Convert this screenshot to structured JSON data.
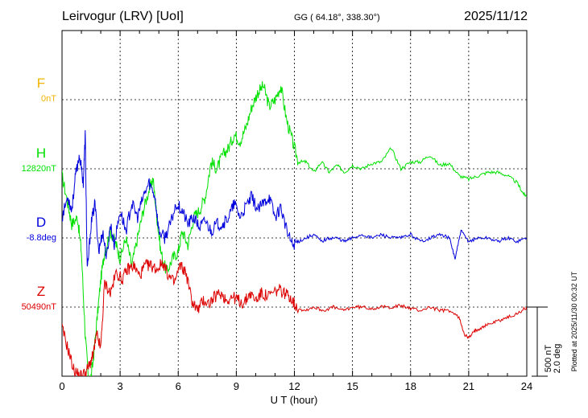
{
  "header": {
    "station": "Leirvogur (LRV)  [UoI]",
    "coords": "GG ( 64.18°, 338.30°)",
    "date": "2025/11/12"
  },
  "footer": {
    "plotted": "Plotted at 2025/11/30 00:32 UT"
  },
  "scale": {
    "nt": "500 nT",
    "deg": "2.0 deg"
  },
  "colors": {
    "F": "#f0b400",
    "H": "#00e000",
    "D": "#0000dd",
    "Z": "#dd0000"
  },
  "chart_data": {
    "type": "line",
    "xlabel": "U T (hour)",
    "xlim": [
      0,
      24
    ],
    "xticks": [
      "0",
      "3",
      "6",
      "9",
      "12",
      "15",
      "18",
      "21",
      "24"
    ],
    "series": [
      {
        "key": "F",
        "name": "F",
        "baseline": "0nT",
        "points": []
      },
      {
        "key": "H",
        "name": "H",
        "baseline": "12820nT",
        "points": [
          [
            0,
            -0.1
          ],
          [
            0.3,
            -0.5
          ],
          [
            0.5,
            -0.8
          ],
          [
            0.8,
            -0.7
          ],
          [
            1.0,
            -1.2
          ],
          [
            1.2,
            -2.4
          ],
          [
            1.4,
            -3.2
          ],
          [
            1.6,
            -2.8
          ],
          [
            1.8,
            -2.2
          ],
          [
            2.0,
            -1.6
          ],
          [
            2.2,
            -1.2
          ],
          [
            2.5,
            -0.9
          ],
          [
            2.8,
            -1.1
          ],
          [
            3.0,
            -1.3
          ],
          [
            3.3,
            -1.0
          ],
          [
            3.6,
            -1.4
          ],
          [
            3.9,
            -1.0
          ],
          [
            4.2,
            -0.6
          ],
          [
            4.5,
            -0.3
          ],
          [
            4.7,
            -0.15
          ],
          [
            4.9,
            -0.7
          ],
          [
            5.1,
            -1.2
          ],
          [
            5.4,
            -1.5
          ],
          [
            5.7,
            -1.3
          ],
          [
            6.0,
            -1.2
          ],
          [
            6.2,
            -0.9
          ],
          [
            6.5,
            -1.1
          ],
          [
            6.8,
            -0.7
          ],
          [
            7.1,
            -0.6
          ],
          [
            7.4,
            -0.4
          ],
          [
            7.7,
            0.1
          ],
          [
            8.0,
            0.0
          ],
          [
            8.3,
            0.2
          ],
          [
            8.6,
            0.3
          ],
          [
            8.9,
            0.5
          ],
          [
            9.2,
            0.4
          ],
          [
            9.5,
            0.6
          ],
          [
            9.8,
            0.9
          ],
          [
            10.1,
            1.1
          ],
          [
            10.4,
            1.2
          ],
          [
            10.7,
            0.9
          ],
          [
            11.0,
            1.0
          ],
          [
            11.3,
            1.2
          ],
          [
            11.6,
            0.7
          ],
          [
            11.9,
            0.4
          ],
          [
            12.2,
            0.1
          ],
          [
            12.6,
            0.1
          ],
          [
            13.0,
            -0.05
          ],
          [
            13.4,
            0.1
          ],
          [
            13.8,
            -0.05
          ],
          [
            14.2,
            0.05
          ],
          [
            14.6,
            -0.05
          ],
          [
            15.0,
            0.05
          ],
          [
            15.5,
            0.0
          ],
          [
            16.0,
            0.08
          ],
          [
            16.5,
            0.1
          ],
          [
            17.0,
            0.3
          ],
          [
            17.5,
            0.0
          ],
          [
            18.0,
            0.1
          ],
          [
            18.5,
            0.1
          ],
          [
            19.0,
            0.2
          ],
          [
            19.5,
            0.05
          ],
          [
            20.0,
            0.08
          ],
          [
            20.5,
            -0.1
          ],
          [
            21.0,
            -0.15
          ],
          [
            21.5,
            -0.1
          ],
          [
            22.0,
            -0.05
          ],
          [
            22.5,
            -0.05
          ],
          [
            23.0,
            -0.1
          ],
          [
            23.5,
            -0.2
          ],
          [
            23.8,
            -0.35
          ],
          [
            24.0,
            -0.4
          ]
        ]
      },
      {
        "key": "D",
        "name": "D",
        "baseline": "-8.8deg",
        "points": [
          [
            0,
            0.3
          ],
          [
            0.3,
            0.6
          ],
          [
            0.5,
            0.4
          ],
          [
            0.7,
            0.9
          ],
          [
            0.9,
            1.2
          ],
          [
            1.1,
            0.8
          ],
          [
            1.2,
            1.5
          ],
          [
            1.3,
            -0.5
          ],
          [
            1.5,
            0.2
          ],
          [
            1.7,
            0.5
          ],
          [
            1.9,
            -0.2
          ],
          [
            2.1,
            0.1
          ],
          [
            2.3,
            -0.3
          ],
          [
            2.5,
            0.2
          ],
          [
            2.7,
            -0.1
          ],
          [
            3.0,
            0.4
          ],
          [
            3.3,
            0.1
          ],
          [
            3.6,
            0.5
          ],
          [
            3.9,
            0.3
          ],
          [
            4.2,
            0.6
          ],
          [
            4.5,
            0.8
          ],
          [
            4.8,
            0.6
          ],
          [
            5.0,
            0.1
          ],
          [
            5.3,
            0.0
          ],
          [
            5.6,
            0.2
          ],
          [
            5.9,
            0.5
          ],
          [
            6.2,
            0.4
          ],
          [
            6.5,
            0.2
          ],
          [
            6.8,
            0.3
          ],
          [
            7.1,
            0.15
          ],
          [
            7.4,
            0.25
          ],
          [
            7.7,
            0.1
          ],
          [
            8.0,
            0.2
          ],
          [
            8.3,
            0.2
          ],
          [
            8.6,
            0.3
          ],
          [
            8.9,
            0.5
          ],
          [
            9.2,
            0.3
          ],
          [
            9.5,
            0.45
          ],
          [
            9.8,
            0.6
          ],
          [
            10.1,
            0.4
          ],
          [
            10.4,
            0.5
          ],
          [
            10.7,
            0.6
          ],
          [
            11.0,
            0.3
          ],
          [
            11.3,
            0.45
          ],
          [
            11.6,
            0.1
          ],
          [
            11.9,
            -0.1
          ],
          [
            12.2,
            -0.05
          ],
          [
            12.6,
            0.0
          ],
          [
            13.0,
            0.05
          ],
          [
            13.4,
            -0.05
          ],
          [
            13.8,
            0.0
          ],
          [
            14.2,
            0.0
          ],
          [
            14.6,
            -0.05
          ],
          [
            15.0,
            0.0
          ],
          [
            15.5,
            0.05
          ],
          [
            16.0,
            0.0
          ],
          [
            16.5,
            0.05
          ],
          [
            17.0,
            0.0
          ],
          [
            17.5,
            0.0
          ],
          [
            18.0,
            0.05
          ],
          [
            18.5,
            -0.05
          ],
          [
            19.0,
            0.0
          ],
          [
            19.5,
            0.05
          ],
          [
            20.0,
            0.0
          ],
          [
            20.3,
            -0.3
          ],
          [
            20.6,
            0.1
          ],
          [
            21.0,
            -0.05
          ],
          [
            21.5,
            0.0
          ],
          [
            22.0,
            0.0
          ],
          [
            22.5,
            -0.05
          ],
          [
            23.0,
            0.0
          ],
          [
            23.5,
            -0.05
          ],
          [
            24.0,
            0.0
          ]
        ]
      },
      {
        "key": "Z",
        "name": "Z",
        "baseline": "50490nT",
        "points": [
          [
            0,
            -0.3
          ],
          [
            0.3,
            -0.6
          ],
          [
            0.6,
            -0.9
          ],
          [
            0.9,
            -1.0
          ],
          [
            1.2,
            -0.95
          ],
          [
            1.4,
            -0.85
          ],
          [
            1.6,
            -0.7
          ],
          [
            1.8,
            -0.4
          ],
          [
            2.0,
            -0.6
          ],
          [
            2.2,
            0.35
          ],
          [
            2.5,
            0.2
          ],
          [
            2.8,
            0.5
          ],
          [
            3.1,
            0.4
          ],
          [
            3.4,
            0.55
          ],
          [
            3.7,
            0.6
          ],
          [
            4.0,
            0.45
          ],
          [
            4.3,
            0.6
          ],
          [
            4.6,
            0.6
          ],
          [
            4.9,
            0.55
          ],
          [
            5.2,
            0.65
          ],
          [
            5.5,
            0.45
          ],
          [
            5.8,
            0.35
          ],
          [
            6.1,
            0.6
          ],
          [
            6.4,
            0.5
          ],
          [
            6.7,
            0.1
          ],
          [
            7.0,
            -0.05
          ],
          [
            7.3,
            0.1
          ],
          [
            7.6,
            0.05
          ],
          [
            7.9,
            0.15
          ],
          [
            8.2,
            0.2
          ],
          [
            8.5,
            0.1
          ],
          [
            8.8,
            0.15
          ],
          [
            9.1,
            0.1
          ],
          [
            9.4,
            0.05
          ],
          [
            9.7,
            0.2
          ],
          [
            10.0,
            0.1
          ],
          [
            10.3,
            0.2
          ],
          [
            10.6,
            0.15
          ],
          [
            10.9,
            0.2
          ],
          [
            11.2,
            0.25
          ],
          [
            11.5,
            0.2
          ],
          [
            11.8,
            0.15
          ],
          [
            12.1,
            0.0
          ],
          [
            12.5,
            -0.05
          ],
          [
            13.0,
            0.0
          ],
          [
            13.5,
            -0.05
          ],
          [
            14.0,
            0.0
          ],
          [
            14.5,
            -0.05
          ],
          [
            15.0,
            0.0
          ],
          [
            15.5,
            0.0
          ],
          [
            16.0,
            -0.02
          ],
          [
            16.5,
            0.0
          ],
          [
            17.0,
            0.0
          ],
          [
            17.5,
            0.02
          ],
          [
            18.0,
            -0.02
          ],
          [
            18.5,
            -0.05
          ],
          [
            19.0,
            0.0
          ],
          [
            19.5,
            -0.05
          ],
          [
            20.0,
            -0.05
          ],
          [
            20.5,
            -0.15
          ],
          [
            20.8,
            -0.4
          ],
          [
            21.0,
            -0.45
          ],
          [
            21.3,
            -0.35
          ],
          [
            21.6,
            -0.3
          ],
          [
            22.0,
            -0.25
          ],
          [
            22.5,
            -0.2
          ],
          [
            23.0,
            -0.15
          ],
          [
            23.5,
            -0.1
          ],
          [
            24.0,
            0.0
          ]
        ]
      }
    ]
  }
}
